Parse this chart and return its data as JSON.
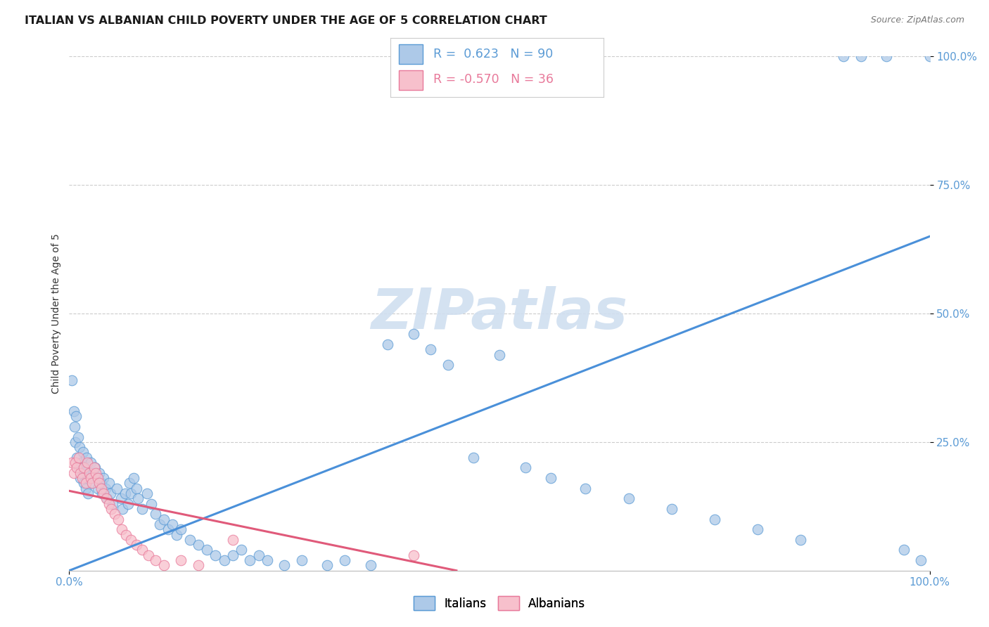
{
  "title": "ITALIAN VS ALBANIAN CHILD POVERTY UNDER THE AGE OF 5 CORRELATION CHART",
  "source": "Source: ZipAtlas.com",
  "ylabel": "Child Poverty Under the Age of 5",
  "xlabel": "",
  "xlim": [
    0,
    1.0
  ],
  "ylim": [
    0,
    1.0
  ],
  "ytick_positions": [
    0.25,
    0.5,
    0.75,
    1.0
  ],
  "ytick_labels": [
    "25.0%",
    "50.0%",
    "75.0%",
    "100.0%"
  ],
  "italian_fill": "#adc9e8",
  "italian_edge": "#5b9bd5",
  "albanian_fill": "#f7c0cc",
  "albanian_edge": "#e8799a",
  "italian_line_color": "#4a90d9",
  "albanian_line_color": "#e05a7a",
  "R_italian": 0.623,
  "N_italian": 90,
  "R_albanian": -0.57,
  "N_albanian": 36,
  "watermark": "ZIPatlas",
  "watermark_color": "#d0dff0",
  "background_color": "#ffffff",
  "grid_color": "#cccccc",
  "title_fontsize": 11.5,
  "axis_label_fontsize": 10,
  "tick_fontsize": 11,
  "source_fontsize": 9,
  "italian_x": [
    0.003,
    0.005,
    0.006,
    0.007,
    0.008,
    0.009,
    0.01,
    0.011,
    0.012,
    0.013,
    0.014,
    0.015,
    0.016,
    0.017,
    0.018,
    0.019,
    0.02,
    0.021,
    0.022,
    0.023,
    0.025,
    0.027,
    0.028,
    0.03,
    0.032,
    0.033,
    0.035,
    0.037,
    0.038,
    0.04,
    0.042,
    0.044,
    0.046,
    0.048,
    0.05,
    0.055,
    0.06,
    0.062,
    0.065,
    0.068,
    0.07,
    0.072,
    0.075,
    0.078,
    0.08,
    0.085,
    0.09,
    0.095,
    0.1,
    0.105,
    0.11,
    0.115,
    0.12,
    0.125,
    0.13,
    0.14,
    0.15,
    0.16,
    0.17,
    0.18,
    0.19,
    0.2,
    0.21,
    0.22,
    0.23,
    0.25,
    0.27,
    0.3,
    0.32,
    0.35,
    0.37,
    0.4,
    0.42,
    0.44,
    0.47,
    0.5,
    0.53,
    0.56,
    0.6,
    0.65,
    0.7,
    0.75,
    0.8,
    0.85,
    0.9,
    0.92,
    0.95,
    0.97,
    0.99,
    1.0
  ],
  "italian_y": [
    0.37,
    0.31,
    0.28,
    0.25,
    0.3,
    0.22,
    0.26,
    0.2,
    0.24,
    0.18,
    0.21,
    0.19,
    0.23,
    0.17,
    0.2,
    0.16,
    0.22,
    0.18,
    0.15,
    0.19,
    0.21,
    0.17,
    0.19,
    0.2,
    0.18,
    0.16,
    0.19,
    0.17,
    0.15,
    0.18,
    0.16,
    0.14,
    0.17,
    0.15,
    0.13,
    0.16,
    0.14,
    0.12,
    0.15,
    0.13,
    0.17,
    0.15,
    0.18,
    0.16,
    0.14,
    0.12,
    0.15,
    0.13,
    0.11,
    0.09,
    0.1,
    0.08,
    0.09,
    0.07,
    0.08,
    0.06,
    0.05,
    0.04,
    0.03,
    0.02,
    0.03,
    0.04,
    0.02,
    0.03,
    0.02,
    0.01,
    0.02,
    0.01,
    0.02,
    0.01,
    0.44,
    0.46,
    0.43,
    0.4,
    0.22,
    0.42,
    0.2,
    0.18,
    0.16,
    0.14,
    0.12,
    0.1,
    0.08,
    0.06,
    1.0,
    1.0,
    1.0,
    0.04,
    0.02,
    1.0
  ],
  "albanian_x": [
    0.003,
    0.005,
    0.007,
    0.009,
    0.011,
    0.013,
    0.015,
    0.017,
    0.019,
    0.021,
    0.023,
    0.025,
    0.027,
    0.029,
    0.031,
    0.033,
    0.035,
    0.037,
    0.04,
    0.043,
    0.046,
    0.049,
    0.053,
    0.057,
    0.061,
    0.066,
    0.072,
    0.078,
    0.085,
    0.092,
    0.1,
    0.11,
    0.13,
    0.15,
    0.19,
    0.4
  ],
  "albanian_y": [
    0.21,
    0.19,
    0.21,
    0.2,
    0.22,
    0.19,
    0.18,
    0.2,
    0.17,
    0.21,
    0.19,
    0.18,
    0.17,
    0.2,
    0.19,
    0.18,
    0.17,
    0.16,
    0.15,
    0.14,
    0.13,
    0.12,
    0.11,
    0.1,
    0.08,
    0.07,
    0.06,
    0.05,
    0.04,
    0.03,
    0.02,
    0.01,
    0.02,
    0.01,
    0.06,
    0.03
  ],
  "it_line_x0": 0.0,
  "it_line_x1": 1.0,
  "it_line_y0": 0.0,
  "it_line_y1": 0.65,
  "al_line_x0": 0.0,
  "al_line_x1": 0.45,
  "al_line_y0": 0.155,
  "al_line_y1": 0.0
}
